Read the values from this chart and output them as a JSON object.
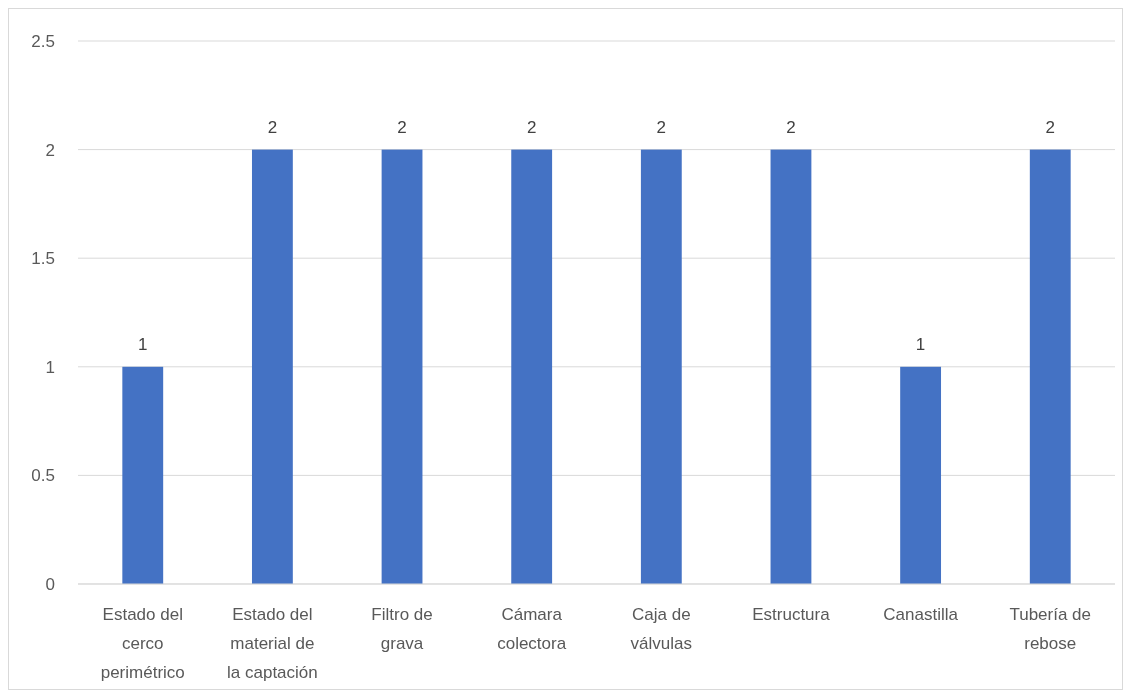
{
  "chart_data": {
    "type": "bar",
    "categories": [
      "Estado del cerco perimétrico",
      "Estado del material de la captación",
      "Filtro de grava",
      "Cámara colectora",
      "Caja de válvulas",
      "Estructura",
      "Canastilla",
      "Tubería de rebose"
    ],
    "values": [
      1,
      2,
      2,
      2,
      2,
      2,
      1,
      2
    ],
    "color": "#4472c4",
    "ylim": [
      0,
      2.5
    ],
    "yticks": [
      0,
      0.5,
      1,
      1.5,
      2,
      2.5
    ],
    "grid": "y",
    "data_labels": true
  }
}
